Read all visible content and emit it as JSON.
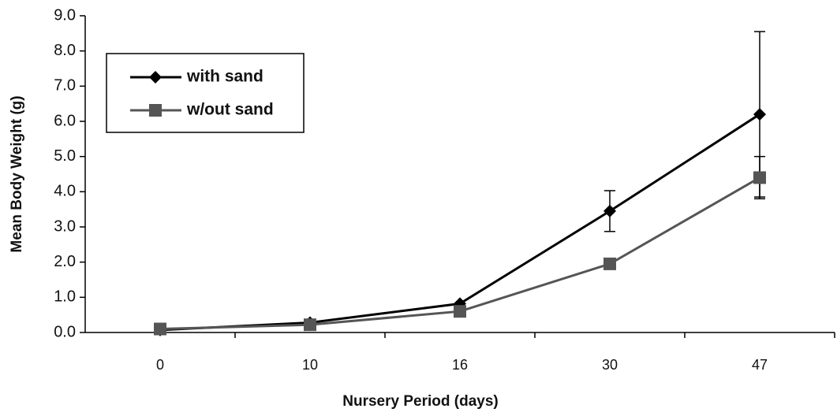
{
  "chart_data": {
    "type": "line",
    "y_label": "Mean Body Weight (g)",
    "x_label": "Nursery Period (days)",
    "categories": [
      "0",
      "10",
      "16",
      "30",
      "47"
    ],
    "series": [
      {
        "name": "with sand",
        "color": "#000000",
        "marker": "diamond",
        "values": [
          0.07,
          0.28,
          0.82,
          3.45,
          6.2
        ],
        "errors": [
          null,
          null,
          null,
          0.58,
          2.35
        ]
      },
      {
        "name": "w/out sand",
        "color": "#555555",
        "marker": "square",
        "values": [
          0.1,
          0.22,
          0.6,
          1.95,
          4.4
        ],
        "errors": [
          null,
          null,
          null,
          null,
          0.6
        ]
      }
    ],
    "ylim": [
      0,
      9
    ],
    "yticks": [
      {
        "value": 0,
        "label": "0.0"
      },
      {
        "value": 1,
        "label": "1.0"
      },
      {
        "value": 2,
        "label": "2.0"
      },
      {
        "value": 3,
        "label": "3.0"
      },
      {
        "value": 4,
        "label": "4.0"
      },
      {
        "value": 5,
        "label": "5.0"
      },
      {
        "value": 6,
        "label": "6.0"
      },
      {
        "value": 7,
        "label": "7.0"
      },
      {
        "value": 8,
        "label": "8.0"
      },
      {
        "value": 9,
        "label": "9.0"
      }
    ],
    "grid": false,
    "legend": "upper left"
  }
}
